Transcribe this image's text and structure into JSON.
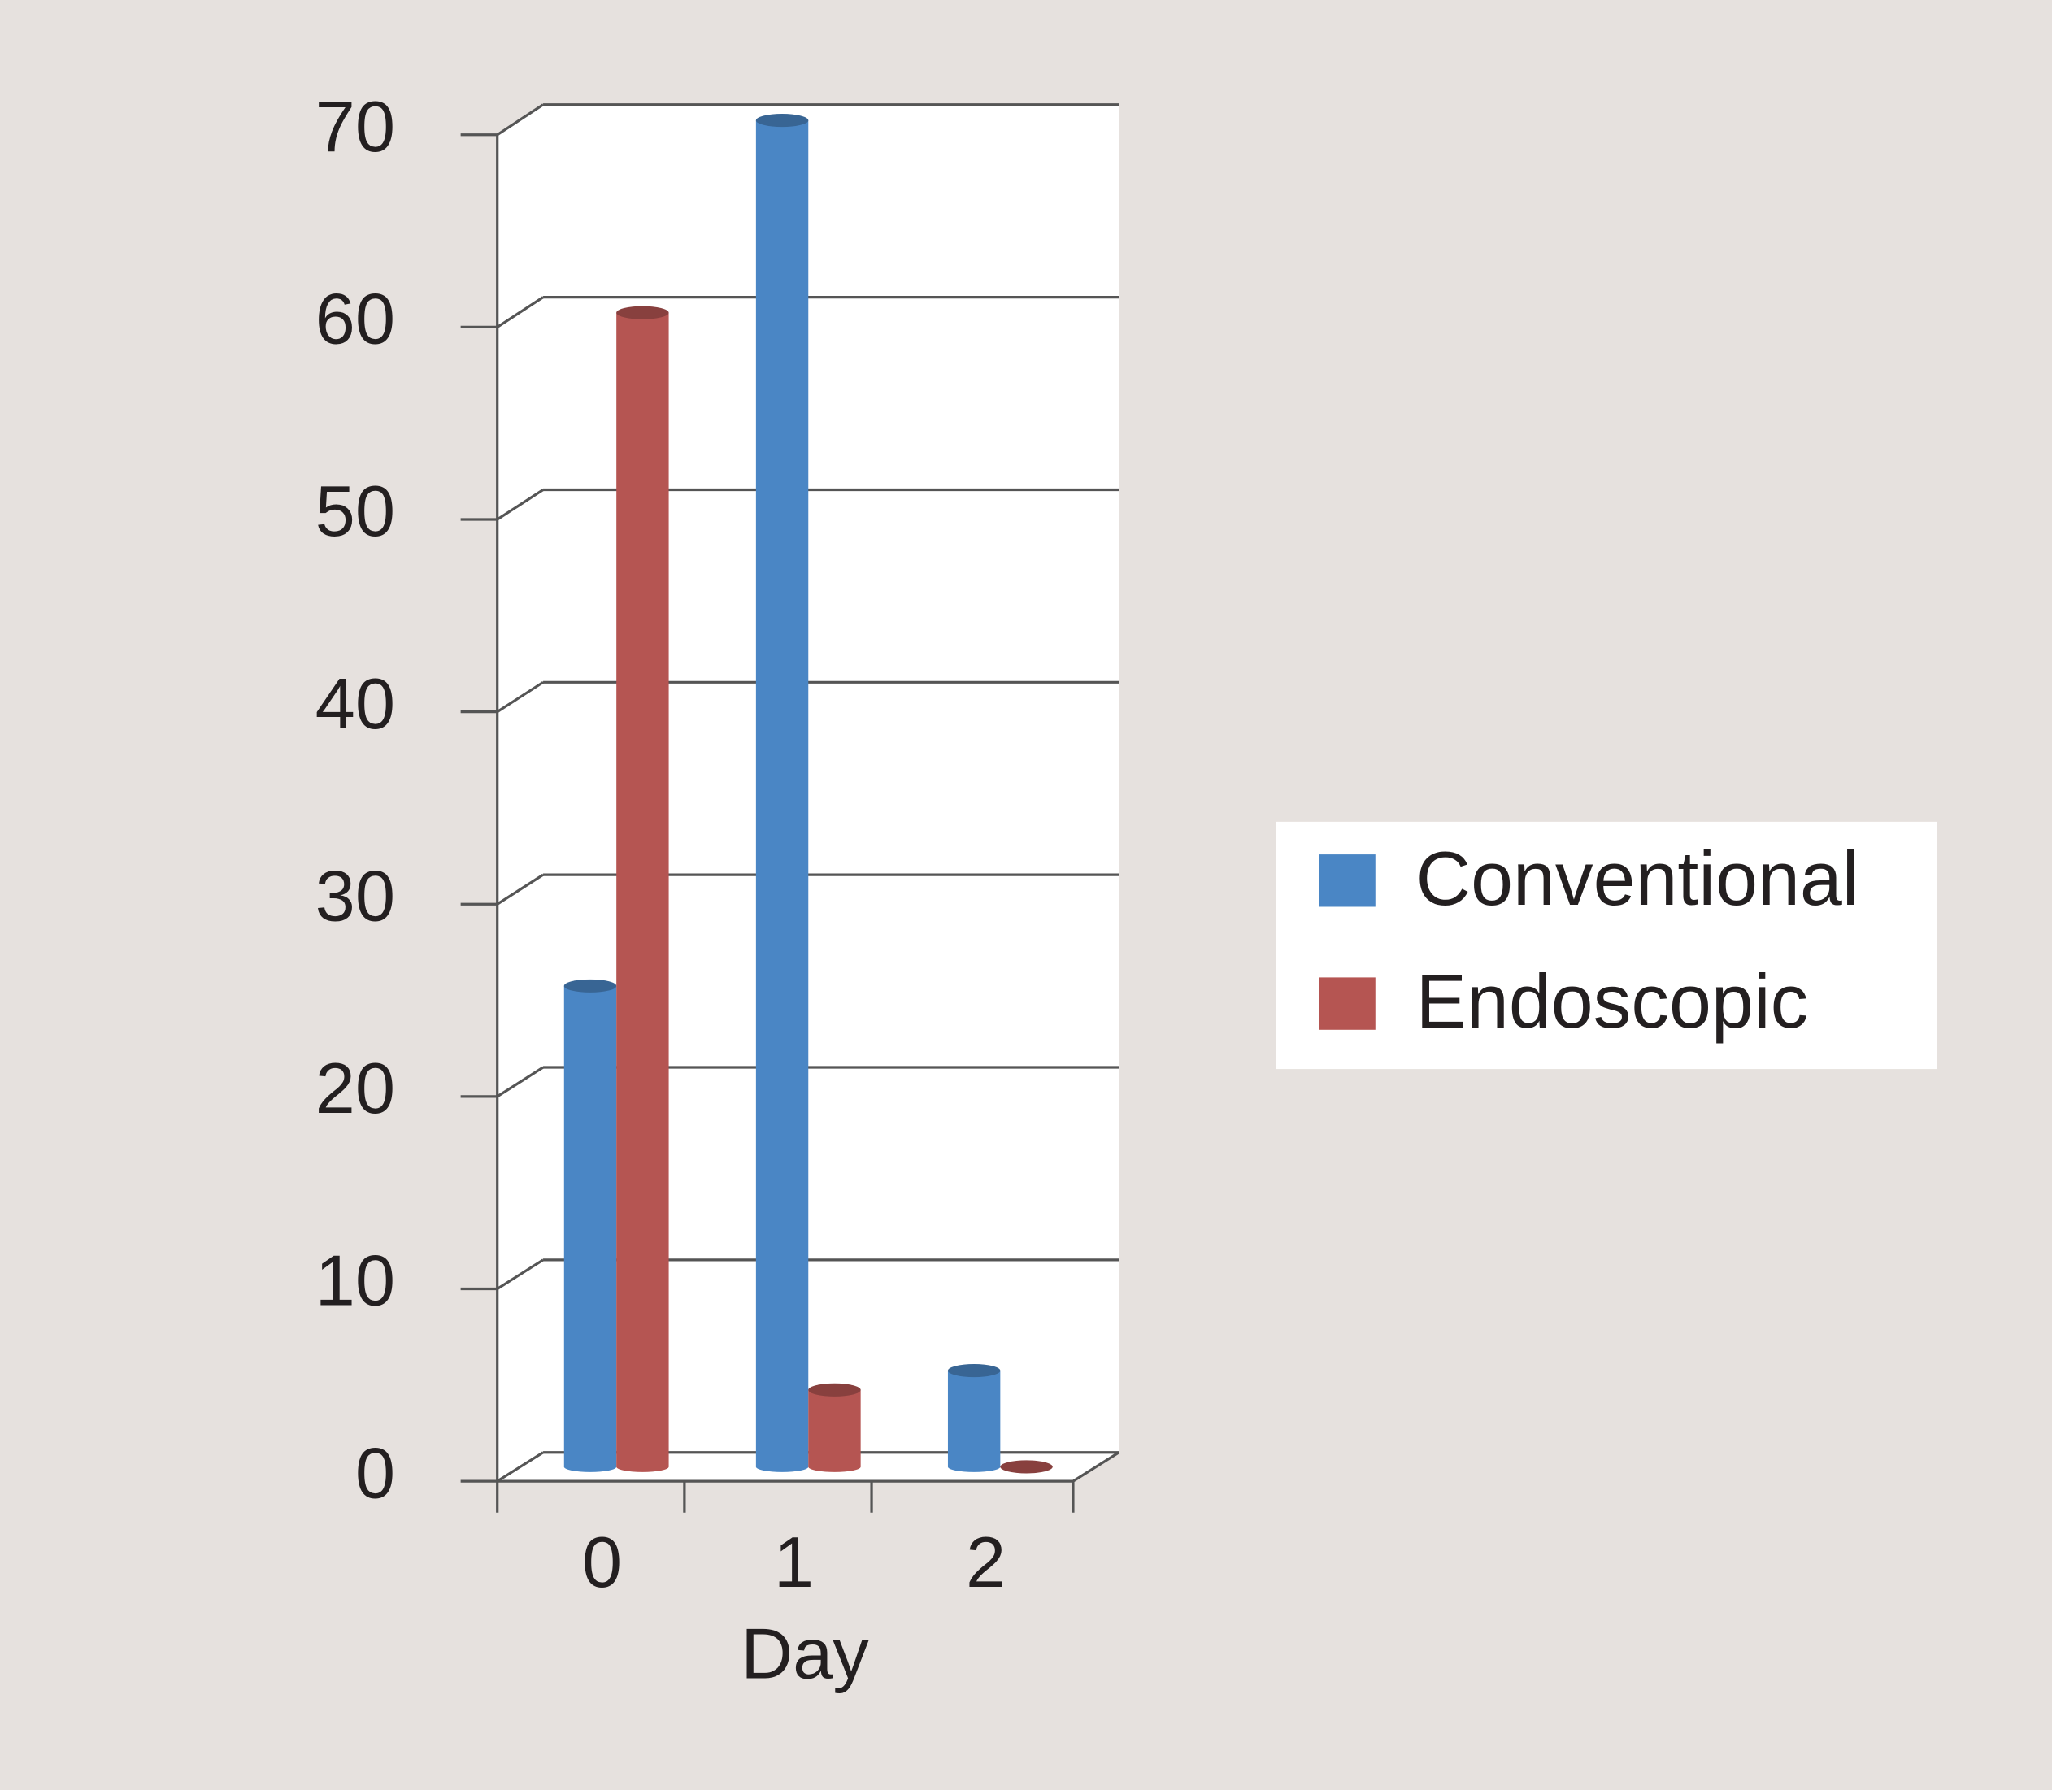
{
  "chart_data": {
    "type": "bar",
    "x_label": "Day",
    "categories": [
      "0",
      "1",
      "2"
    ],
    "series": [
      {
        "name": "Conventional",
        "color": "#4a86c5",
        "values": [
          25,
          70,
          5
        ]
      },
      {
        "name": "Endoscopic",
        "color": "#b55552",
        "values": [
          60,
          4,
          0
        ]
      }
    ],
    "ylim": [
      0,
      70
    ],
    "yticks": [
      0,
      10,
      20,
      30,
      40,
      50,
      60,
      70
    ],
    "grid": true,
    "legend": "right"
  }
}
